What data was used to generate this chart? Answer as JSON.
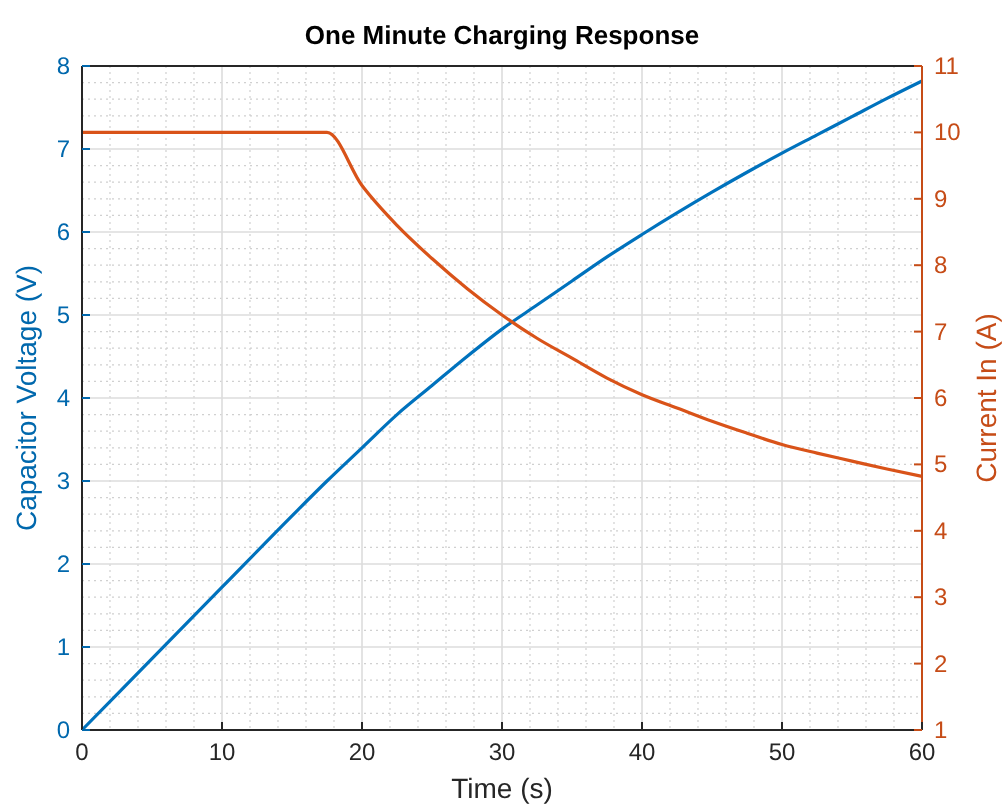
{
  "chart_data": {
    "type": "line",
    "title": "One Minute Charging Response",
    "xlabel": "Time (s)",
    "ylabel": "Capacitor Voltage (V)",
    "y2label": "Current In (A)",
    "xlim": [
      0,
      60
    ],
    "xticks": [
      0,
      10,
      20,
      30,
      40,
      50,
      60
    ],
    "ylim": [
      0,
      8
    ],
    "yticks": [
      0,
      1,
      2,
      3,
      4,
      5,
      6,
      7,
      8
    ],
    "y2lim": [
      1,
      11
    ],
    "y2ticks": [
      1,
      2,
      3,
      4,
      5,
      6,
      7,
      8,
      9,
      10,
      11
    ],
    "grid": true,
    "line_style": "solid",
    "series": [
      {
        "color": "#0072bd",
        "x": [
          0,
          5,
          10,
          15,
          17.5,
          20,
          22.5,
          25,
          27.5,
          30,
          32.5,
          35,
          37.5,
          40,
          42.5,
          45,
          47.5,
          50,
          52.5,
          55,
          57.5,
          60
        ],
        "values": [
          0,
          0.86,
          1.72,
          2.58,
          3.0,
          3.4,
          3.8,
          4.15,
          4.5,
          4.83,
          5.12,
          5.41,
          5.7,
          5.97,
          6.23,
          6.48,
          6.72,
          6.95,
          7.17,
          7.39,
          7.61,
          7.82
        ]
      },
      {
        "color": "#d95319",
        "axis": "y2",
        "x": [
          0,
          5,
          10,
          15,
          17.5,
          20,
          22.5,
          25,
          27.5,
          30,
          32.5,
          35,
          37.5,
          40,
          42.5,
          45,
          47.5,
          50,
          52.5,
          55,
          57.5,
          60
        ],
        "values": [
          10,
          10,
          10,
          10,
          10,
          9.2,
          8.6,
          8.1,
          7.65,
          7.25,
          6.9,
          6.6,
          6.3,
          6.05,
          5.85,
          5.65,
          5.47,
          5.3,
          5.17,
          5.05,
          4.93,
          4.82
        ]
      }
    ]
  }
}
